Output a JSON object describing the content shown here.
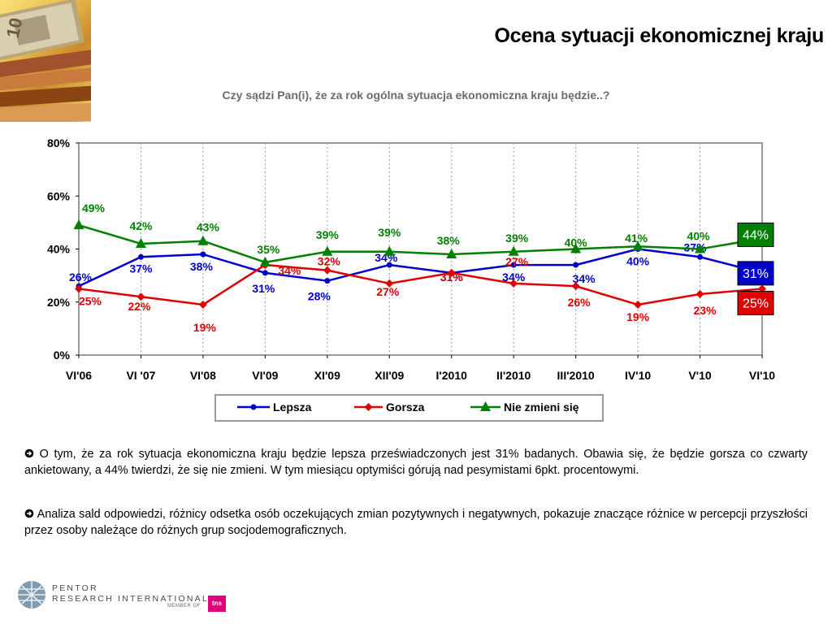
{
  "header": {
    "title": "Ocena sytuacji ekonomicznej kraju",
    "subtitle": "Czy sądzi Pan(i), że za rok ogólna sytuacja ekonomiczna kraju będzie..?"
  },
  "chart_data": {
    "type": "line",
    "categories": [
      "VI'06",
      "VI '07",
      "VI'08",
      "VI'09",
      "XI'09",
      "XII'09",
      "I'2010",
      "II'2010",
      "III'2010",
      "IV'10",
      "V'10",
      "VI'10"
    ],
    "ylim": [
      0,
      80
    ],
    "y_ticks": [
      "0%",
      "20%",
      "40%",
      "60%",
      "80%"
    ],
    "grid": "vertical dashed",
    "legend_position": "bottom",
    "series": [
      {
        "name": "Lepsza",
        "color": "#0000cc",
        "marker": "circle",
        "values": [
          26,
          37,
          38,
          31,
          28,
          34,
          31,
          34,
          34,
          40,
          37,
          31
        ],
        "labels": [
          "26%",
          "37%",
          "38%",
          "31%",
          "28%",
          "34%",
          "31%",
          "34%",
          "34%",
          "40%",
          "37%",
          "31%"
        ]
      },
      {
        "name": "Gorsza",
        "color": "#e00000",
        "marker": "diamond",
        "values": [
          25,
          22,
          19,
          34,
          32,
          27,
          31,
          27,
          26,
          19,
          23,
          25
        ],
        "labels": [
          "25%",
          "22%",
          "19%",
          "34%",
          "32%",
          "27%",
          "31%",
          "27%",
          "26%",
          "19%",
          "23%",
          "25%"
        ]
      },
      {
        "name": "Nie zmieni się",
        "color": "#008000",
        "marker": "triangle",
        "values": [
          49,
          42,
          43,
          35,
          39,
          39,
          38,
          39,
          40,
          41,
          40,
          44
        ],
        "labels": [
          "49%",
          "42%",
          "43%",
          "35%",
          "39%",
          "39%",
          "38%",
          "39%",
          "40%",
          "41%",
          "40%",
          "44%"
        ]
      }
    ]
  },
  "paragraphs": [
    "O tym, że za rok sytuacja ekonomiczna kraju będzie lepsza przeświadczonych jest 31% badanych. Obawia się, że będzie gorsza  co czwarty ankietowany, a 44% twierdzi, że się nie zmieni. W tym miesiącu optymiści górują nad pesymistami 6pkt. procentowymi.",
    "Analiza sald odpowiedzi, różnicy odsetka osób oczekujących zmian pozytywnych i negatywnych, pokazuje znaczące różnice w percepcji przyszłości przez osoby należące do różnych grup socjodemograficznych."
  ],
  "bullet_icon": "arrow-circle-icon",
  "footer": {
    "logo_line1": "PENTOR",
    "logo_line2": "RESEARCH INTERNATIONAL",
    "member_of": "MEMBER OF",
    "tns": "tns"
  }
}
